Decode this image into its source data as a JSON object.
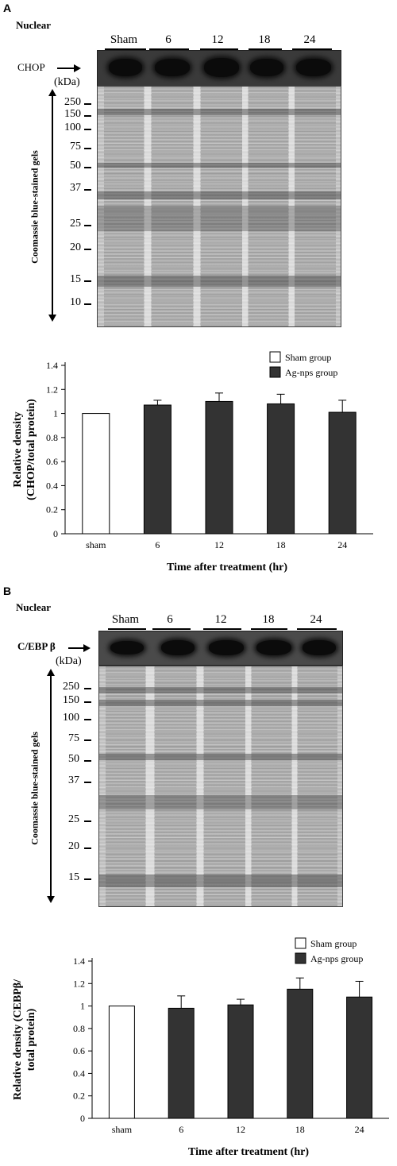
{
  "panels": [
    {
      "letter": "A",
      "compartment": "Nuclear",
      "protein_label": "CHOP",
      "lanes": [
        "Sham",
        "6",
        "12",
        "18",
        "24"
      ],
      "kda_label": "(kDa)",
      "markers": [
        "250",
        "150",
        "100",
        "75",
        "50",
        "37",
        "25",
        "20",
        "15",
        "10"
      ],
      "gel_caption": "Coomassie blue-stained gels"
    },
    {
      "letter": "B",
      "compartment": "Nuclear",
      "protein_label": "C/EBP β",
      "lanes": [
        "Sham",
        "6",
        "12",
        "18",
        "24"
      ],
      "kda_label": "(kDa)",
      "markers": [
        "250",
        "150",
        "100",
        "75",
        "50",
        "37",
        "25",
        "20",
        "15"
      ],
      "gel_caption": "Coomassie blue-stained gels"
    }
  ],
  "colors": {
    "sham": "#ffffff",
    "ag": "#333333",
    "axis": "#000000"
  },
  "chart_data": [
    {
      "type": "bar",
      "categories": [
        "sham",
        "6",
        "12",
        "18",
        "24"
      ],
      "series": [
        {
          "name": "Sham group",
          "values": [
            1.0,
            null,
            null,
            null,
            null
          ]
        },
        {
          "name": "Ag-nps group",
          "values": [
            null,
            1.07,
            1.1,
            1.08,
            1.01
          ]
        }
      ],
      "errors": [
        0,
        0.04,
        0.07,
        0.08,
        0.1
      ],
      "ylim": [
        0,
        1.4
      ],
      "yticks": [
        "0",
        "0.2",
        "0.4",
        "0.6",
        "0.8",
        "1",
        "1.2",
        "1.4"
      ],
      "ylabel": [
        "Relative density",
        "(CHOP/total protein)"
      ],
      "xlabel": "Time after treatment (hr)",
      "legend_position": "top-right",
      "grid": false
    },
    {
      "type": "bar",
      "categories": [
        "sham",
        "6",
        "12",
        "18",
        "24"
      ],
      "series": [
        {
          "name": "Sham group",
          "values": [
            1.0,
            null,
            null,
            null,
            null
          ]
        },
        {
          "name": "Ag-nps group",
          "values": [
            null,
            0.98,
            1.01,
            1.15,
            1.08
          ]
        }
      ],
      "errors": [
        0,
        0.11,
        0.05,
        0.1,
        0.14
      ],
      "ylim": [
        0,
        1.4
      ],
      "yticks": [
        "0",
        "0.2",
        "0.4",
        "0.6",
        "0.8",
        "1",
        "1.2",
        "1.4"
      ],
      "ylabel": [
        "Relative density (CEBPβ/",
        "total protein)"
      ],
      "xlabel": "Time after treatment (hr)",
      "legend_position": "top-right",
      "grid": false
    }
  ]
}
